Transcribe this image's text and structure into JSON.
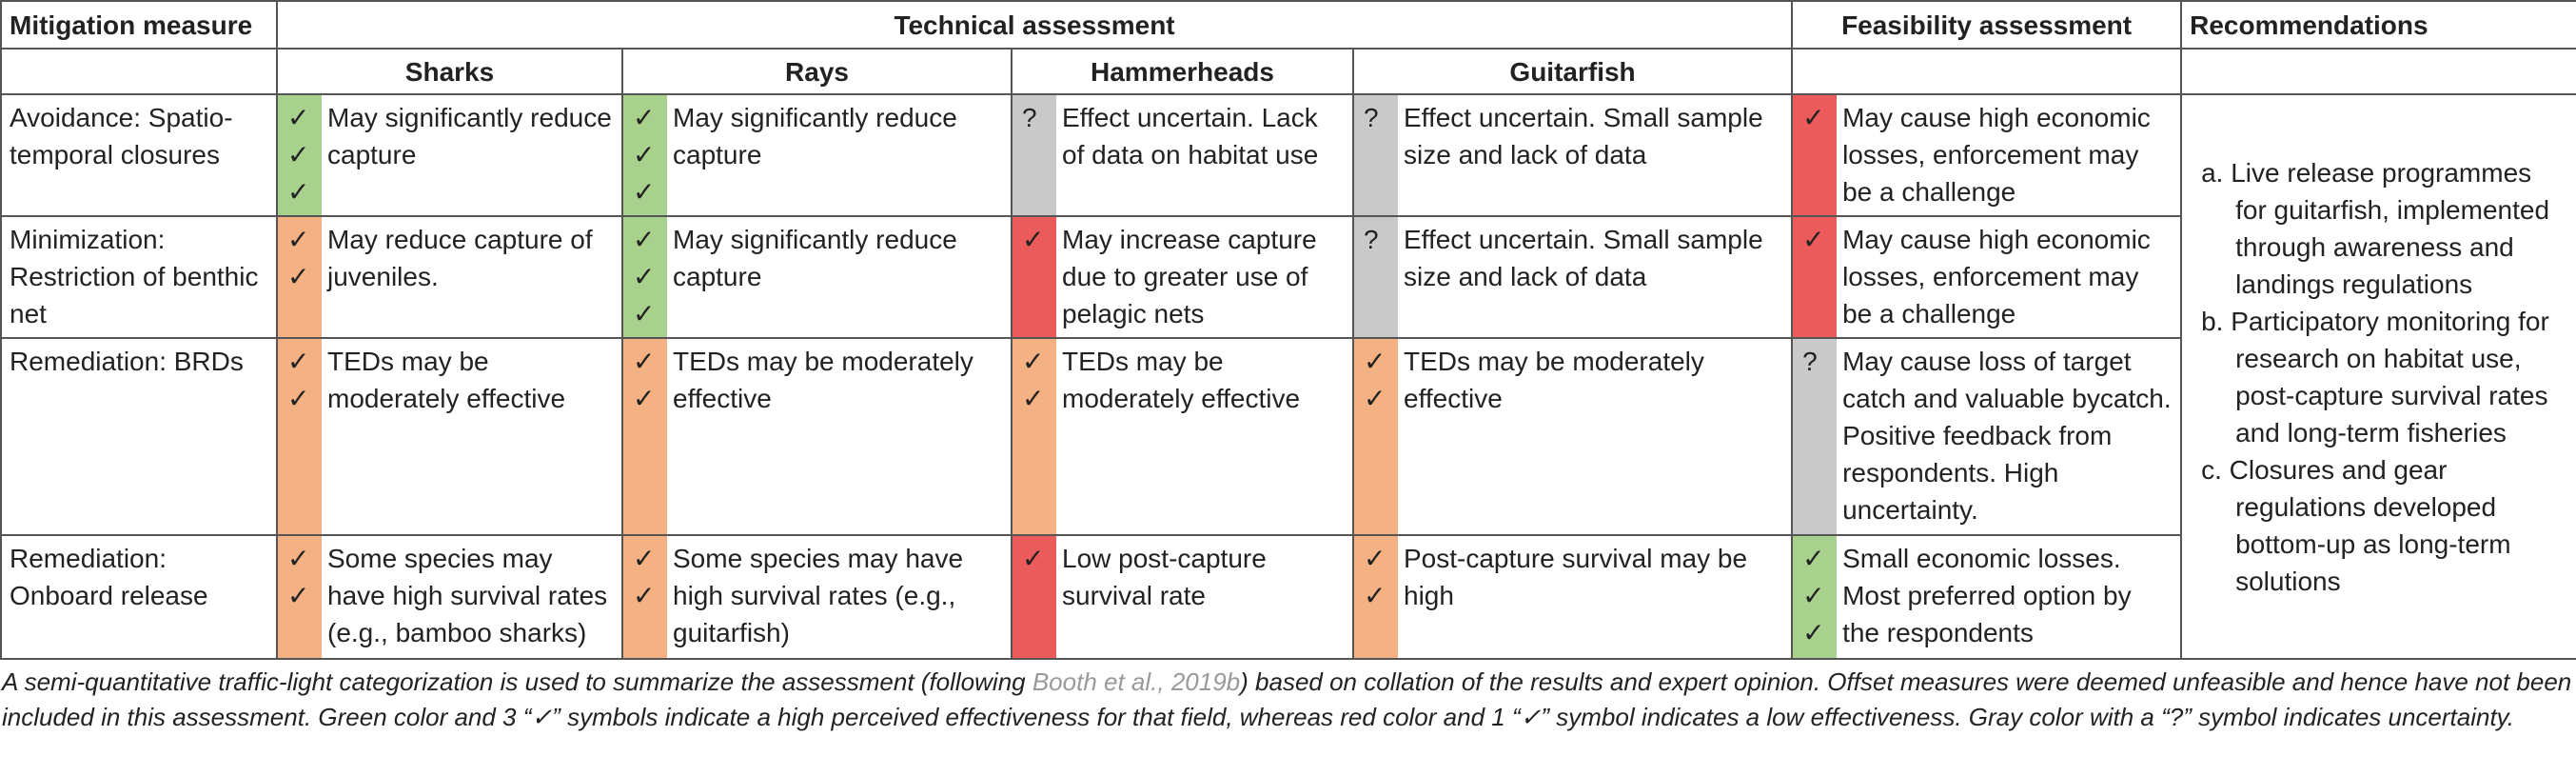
{
  "header": {
    "measure": "Mitigation measure",
    "technical": "Technical assessment",
    "feasibility": "Feasibility assessment",
    "recommendations": "Recommendations",
    "groups": [
      "Sharks",
      "Rays",
      "Hammerheads",
      "Guitarfish"
    ]
  },
  "colors": {
    "green": "#a9d18e",
    "orange": "#f4b183",
    "red": "#eb5b5b",
    "gray": "#c9c9c9"
  },
  "rows": [
    {
      "measure": "Avoidance: Spatio-temporal closures",
      "cells": [
        {
          "color": "green",
          "marks": [
            "✓",
            "✓",
            "✓"
          ],
          "text": "May significantly reduce capture"
        },
        {
          "color": "green",
          "marks": [
            "✓",
            "✓",
            "✓"
          ],
          "text": "May significantly reduce capture"
        },
        {
          "color": "gray",
          "marks": [
            "?"
          ],
          "text": "Effect uncertain. Lack of data on habitat use"
        },
        {
          "color": "gray",
          "marks": [
            "?"
          ],
          "text": "Effect uncertain. Small sample size and lack of data"
        },
        {
          "color": "red",
          "marks": [
            "✓"
          ],
          "text": "May cause high economic losses, enforcement may be a challenge"
        }
      ]
    },
    {
      "measure": "Minimization: Restriction of benthic net",
      "cells": [
        {
          "color": "orange",
          "marks": [
            "✓",
            "✓"
          ],
          "text": "May reduce capture of juveniles."
        },
        {
          "color": "green",
          "marks": [
            "✓",
            "✓",
            "✓"
          ],
          "text": "May significantly reduce capture"
        },
        {
          "color": "red",
          "marks": [
            "✓"
          ],
          "text": "May increase capture due to greater use of pelagic nets"
        },
        {
          "color": "gray",
          "marks": [
            "?"
          ],
          "text": "Effect uncertain. Small sample size and lack of data"
        },
        {
          "color": "red",
          "marks": [
            "✓"
          ],
          "text": "May cause high economic losses, enforcement may be a challenge"
        }
      ]
    },
    {
      "measure": "Remediation: BRDs",
      "cells": [
        {
          "color": "orange",
          "marks": [
            "✓",
            "✓"
          ],
          "text": "TEDs may be moderately effective"
        },
        {
          "color": "orange",
          "marks": [
            "✓",
            "✓"
          ],
          "text": "TEDs may be moderately effective"
        },
        {
          "color": "orange",
          "marks": [
            "✓",
            "✓"
          ],
          "text": "TEDs may be moderately effective"
        },
        {
          "color": "orange",
          "marks": [
            "✓",
            "✓"
          ],
          "text": "TEDs may be moderately effective"
        },
        {
          "color": "gray",
          "marks": [
            "?"
          ],
          "text": "May cause loss of target catch and valuable bycatch. Positive feedback from respondents. High uncertainty."
        }
      ]
    },
    {
      "measure": "Remediation: Onboard release",
      "cells": [
        {
          "color": "orange",
          "marks": [
            "✓",
            "✓"
          ],
          "text": "Some species may have high survival rates (e.g., bamboo sharks)"
        },
        {
          "color": "orange",
          "marks": [
            "✓",
            "✓"
          ],
          "text": "Some species may have high survival rates (e.g., guitarfish)"
        },
        {
          "color": "red",
          "marks": [
            "✓"
          ],
          "text": "Low post-capture survival rate"
        },
        {
          "color": "orange",
          "marks": [
            "✓",
            "✓"
          ],
          "text": "Post-capture survival may be high"
        },
        {
          "color": "green",
          "marks": [
            "✓",
            "✓",
            "✓"
          ],
          "text": "Small economic losses. Most preferred option by the respondents"
        }
      ]
    }
  ],
  "recommendations": [
    {
      "label": "a.",
      "text": "Live release programmes for guitarfish, implemented through awareness and landings regulations"
    },
    {
      "label": "b.",
      "text": "Participatory monitoring for research on habitat use, post-capture survival rates and long-term fisheries"
    },
    {
      "label": "c.",
      "text": "Closures and gear regulations developed bottom-up as long-term solutions"
    }
  ],
  "caption": {
    "before": "A semi-quantitative traffic-light categorization is used to summarize the assessment (following ",
    "link": "Booth et al., 2019b",
    "after": ") based on collation of the results and expert opinion. Offset measures were deemed unfeasible and hence have not been included in this assessment. Green color and 3 “✓” symbols indicate a high perceived effectiveness for that field, whereas red color and 1 “✓” symbol indicates a low effectiveness. Gray color with a “?” symbol indicates uncertainty."
  }
}
